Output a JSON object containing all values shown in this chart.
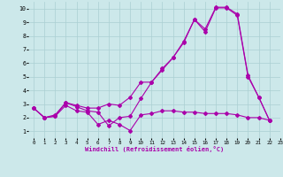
{
  "bg_color": "#cce8ea",
  "grid_color": "#aacfd2",
  "line_color": "#aa00aa",
  "xlabel": "Windchill (Refroidissement éolien,°C)",
  "xlim": [
    -0.5,
    23
  ],
  "ylim": [
    0.5,
    10.5
  ],
  "xticks": [
    0,
    1,
    2,
    3,
    4,
    5,
    6,
    7,
    8,
    9,
    10,
    11,
    12,
    13,
    14,
    15,
    16,
    17,
    18,
    19,
    20,
    21,
    22,
    23
  ],
  "yticks": [
    1,
    2,
    3,
    4,
    5,
    6,
    7,
    8,
    9,
    10
  ],
  "line1_x": [
    0,
    1,
    2,
    3,
    4,
    5,
    6,
    7,
    8,
    9,
    10,
    11,
    12,
    13,
    14,
    15,
    16,
    17,
    18,
    19,
    20,
    21,
    22
  ],
  "line1_y": [
    2.7,
    2.0,
    2.1,
    3.1,
    2.8,
    2.5,
    2.4,
    1.4,
    2.0,
    2.1,
    3.4,
    4.6,
    5.5,
    6.4,
    7.5,
    9.2,
    8.3,
    10.05,
    10.05,
    9.5,
    5.0,
    3.5,
    1.8
  ],
  "line2_x": [
    0,
    1,
    2,
    3,
    4,
    5,
    6,
    7,
    8,
    9,
    10,
    11,
    12,
    13,
    14,
    15,
    16,
    17,
    18,
    19,
    20,
    21,
    22
  ],
  "line2_y": [
    2.7,
    2.0,
    2.2,
    3.1,
    2.9,
    2.7,
    2.7,
    3.0,
    2.9,
    3.5,
    4.6,
    4.6,
    5.6,
    6.4,
    7.6,
    9.2,
    8.5,
    10.1,
    10.1,
    9.6,
    5.1,
    3.5,
    1.8
  ],
  "line3_x": [
    0,
    1,
    2,
    3,
    4,
    5,
    6,
    7,
    8,
    9,
    10,
    11,
    12,
    13,
    14,
    15,
    16,
    17,
    18,
    19,
    20,
    21,
    22
  ],
  "line3_y": [
    2.7,
    2.0,
    2.1,
    2.9,
    2.5,
    2.4,
    1.5,
    1.8,
    1.5,
    1.05,
    2.2,
    2.3,
    2.5,
    2.5,
    2.4,
    2.4,
    2.3,
    2.3,
    2.3,
    2.2,
    2.0,
    2.0,
    1.8
  ]
}
